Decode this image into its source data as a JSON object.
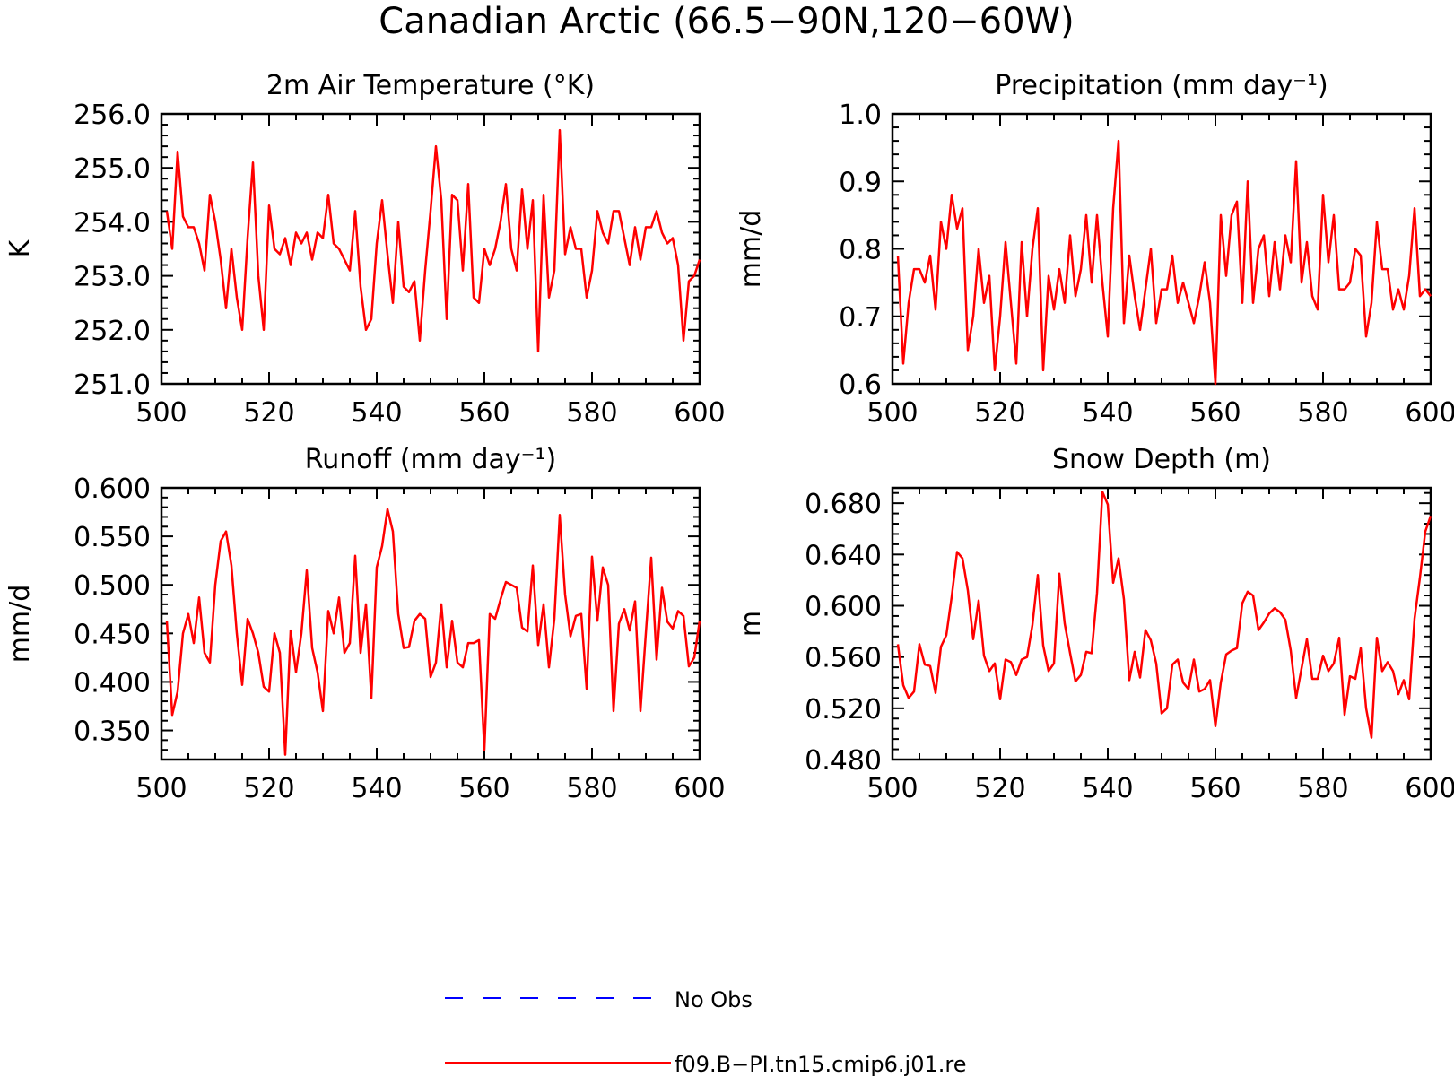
{
  "figure": {
    "title": "Canadian Arctic (66.5−90N,120−60W)"
  },
  "legend": {
    "placement": "bottom-center",
    "entries": [
      {
        "label": "No Obs",
        "color": "#0000ff",
        "style": "dashed"
      },
      {
        "label": "f09.B−PI.tn15.cmip6.j01.re",
        "color": "#ff0000",
        "style": "solid"
      }
    ]
  },
  "chart_data": [
    {
      "type": "line",
      "title": "2m Air Temperature (°K)",
      "ylabel": "K",
      "xlabel": "",
      "xlim": [
        500,
        600
      ],
      "ylim": [
        251.0,
        256.0
      ],
      "xticks": [
        "500",
        "520",
        "540",
        "560",
        "580",
        "600"
      ],
      "yticks": [
        "256.0",
        "255.0",
        "254.0",
        "253.0",
        "252.0",
        "251.0"
      ],
      "color": "#ff0000",
      "x_start": 501,
      "x_step": 1,
      "values": [
        254.2,
        253.5,
        255.3,
        254.1,
        253.9,
        253.9,
        253.6,
        253.1,
        254.5,
        254.0,
        253.3,
        252.4,
        253.5,
        252.6,
        252.0,
        253.7,
        255.1,
        253.0,
        252.0,
        254.3,
        253.5,
        253.4,
        253.7,
        253.2,
        253.8,
        253.6,
        253.8,
        253.3,
        253.8,
        253.7,
        254.5,
        253.6,
        253.5,
        253.3,
        253.1,
        254.2,
        252.8,
        252.0,
        252.2,
        253.6,
        254.4,
        253.4,
        252.5,
        254.0,
        252.8,
        252.7,
        252.9,
        251.8,
        253.1,
        254.2,
        255.4,
        254.4,
        252.2,
        254.5,
        254.4,
        253.1,
        254.7,
        252.6,
        252.5,
        253.5,
        253.2,
        253.5,
        254.0,
        254.7,
        253.5,
        253.1,
        254.6,
        253.5,
        254.4,
        251.6,
        254.5,
        252.6,
        253.1,
        255.7,
        253.4,
        253.9,
        253.5,
        253.5,
        252.6,
        253.1,
        254.2,
        253.8,
        253.6,
        254.2,
        254.2,
        253.7,
        253.2,
        253.9,
        253.3,
        253.9,
        253.9,
        254.2,
        253.8,
        253.6,
        253.7,
        253.2,
        251.8,
        252.9,
        253.0,
        253.3
      ]
    },
    {
      "type": "line",
      "title": "Precipitation (mm day⁻¹)",
      "ylabel": "mm/d",
      "xlabel": "",
      "xlim": [
        500,
        600
      ],
      "ylim": [
        0.6,
        1.0
      ],
      "xticks": [
        "500",
        "520",
        "540",
        "560",
        "580",
        "600"
      ],
      "yticks": [
        "1.0",
        "0.9",
        "0.8",
        "0.7",
        "0.6"
      ],
      "color": "#ff0000",
      "x_start": 501,
      "x_step": 1,
      "values": [
        0.79,
        0.63,
        0.72,
        0.77,
        0.77,
        0.75,
        0.79,
        0.71,
        0.84,
        0.8,
        0.88,
        0.83,
        0.86,
        0.65,
        0.7,
        0.8,
        0.72,
        0.76,
        0.62,
        0.7,
        0.81,
        0.72,
        0.63,
        0.81,
        0.7,
        0.8,
        0.86,
        0.62,
        0.76,
        0.71,
        0.77,
        0.72,
        0.82,
        0.73,
        0.77,
        0.85,
        0.75,
        0.85,
        0.75,
        0.67,
        0.86,
        0.96,
        0.69,
        0.79,
        0.73,
        0.68,
        0.74,
        0.8,
        0.69,
        0.74,
        0.74,
        0.79,
        0.72,
        0.75,
        0.72,
        0.69,
        0.73,
        0.78,
        0.72,
        0.6,
        0.85,
        0.76,
        0.85,
        0.87,
        0.72,
        0.9,
        0.72,
        0.8,
        0.82,
        0.73,
        0.81,
        0.74,
        0.82,
        0.78,
        0.93,
        0.75,
        0.81,
        0.73,
        0.71,
        0.88,
        0.78,
        0.85,
        0.74,
        0.74,
        0.75,
        0.8,
        0.79,
        0.67,
        0.72,
        0.84,
        0.77,
        0.77,
        0.71,
        0.74,
        0.71,
        0.76,
        0.86,
        0.73,
        0.74,
        0.73
      ]
    },
    {
      "type": "line",
      "title": "Runoff (mm day⁻¹)",
      "ylabel": "mm/d",
      "xlabel": "",
      "xlim": [
        500,
        600
      ],
      "ylim": [
        0.32,
        0.6
      ],
      "xticks": [
        "500",
        "520",
        "540",
        "560",
        "580",
        "600"
      ],
      "yticks": [
        "0.600",
        "0.550",
        "0.500",
        "0.450",
        "0.400",
        "0.350"
      ],
      "color": "#ff0000",
      "x_start": 501,
      "x_step": 1,
      "values": [
        0.463,
        0.366,
        0.39,
        0.45,
        0.47,
        0.44,
        0.487,
        0.43,
        0.42,
        0.5,
        0.545,
        0.555,
        0.52,
        0.45,
        0.397,
        0.465,
        0.45,
        0.43,
        0.395,
        0.39,
        0.45,
        0.43,
        0.325,
        0.453,
        0.41,
        0.45,
        0.515,
        0.435,
        0.41,
        0.37,
        0.473,
        0.45,
        0.487,
        0.43,
        0.44,
        0.53,
        0.43,
        0.48,
        0.383,
        0.518,
        0.54,
        0.578,
        0.555,
        0.47,
        0.435,
        0.436,
        0.463,
        0.47,
        0.465,
        0.405,
        0.42,
        0.48,
        0.415,
        0.463,
        0.42,
        0.415,
        0.44,
        0.44,
        0.443,
        0.33,
        0.47,
        0.465,
        0.485,
        0.503,
        0.5,
        0.497,
        0.456,
        0.452,
        0.52,
        0.438,
        0.48,
        0.415,
        0.465,
        0.572,
        0.49,
        0.447,
        0.468,
        0.47,
        0.393,
        0.529,
        0.463,
        0.518,
        0.5,
        0.37,
        0.46,
        0.475,
        0.453,
        0.483,
        0.37,
        0.45,
        0.528,
        0.423,
        0.497,
        0.462,
        0.455,
        0.473,
        0.468,
        0.416,
        0.425,
        0.463
      ]
    },
    {
      "type": "line",
      "title": "Snow Depth (m)",
      "ylabel": "m",
      "xlabel": "",
      "xlim": [
        500,
        600
      ],
      "ylim": [
        0.48,
        0.692
      ],
      "xticks": [
        "500",
        "520",
        "540",
        "560",
        "580",
        "600"
      ],
      "yticks": [
        "0.680",
        "0.640",
        "0.600",
        "0.560",
        "0.520",
        "0.480"
      ],
      "color": "#ff0000",
      "x_start": 501,
      "x_step": 1,
      "values": [
        0.57,
        0.538,
        0.528,
        0.533,
        0.57,
        0.554,
        0.553,
        0.532,
        0.568,
        0.577,
        0.607,
        0.642,
        0.637,
        0.612,
        0.574,
        0.604,
        0.561,
        0.549,
        0.555,
        0.527,
        0.558,
        0.556,
        0.546,
        0.558,
        0.56,
        0.585,
        0.624,
        0.569,
        0.549,
        0.555,
        0.625,
        0.586,
        0.563,
        0.541,
        0.546,
        0.564,
        0.563,
        0.61,
        0.689,
        0.679,
        0.618,
        0.637,
        0.605,
        0.542,
        0.564,
        0.544,
        0.581,
        0.573,
        0.555,
        0.516,
        0.52,
        0.554,
        0.558,
        0.54,
        0.535,
        0.558,
        0.533,
        0.535,
        0.542,
        0.506,
        0.54,
        0.562,
        0.565,
        0.567,
        0.602,
        0.611,
        0.608,
        0.581,
        0.587,
        0.594,
        0.598,
        0.595,
        0.589,
        0.565,
        0.528,
        0.551,
        0.574,
        0.543,
        0.543,
        0.561,
        0.549,
        0.555,
        0.575,
        0.515,
        0.545,
        0.543,
        0.567,
        0.52,
        0.497,
        0.575,
        0.549,
        0.556,
        0.549,
        0.531,
        0.542,
        0.527,
        0.59,
        0.622,
        0.658,
        0.67
      ]
    }
  ]
}
